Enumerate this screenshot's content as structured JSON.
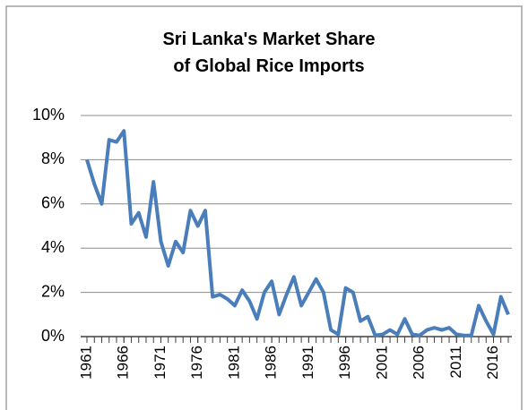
{
  "chart_data": {
    "type": "line",
    "title": [
      "Sri Lanka's Market Share",
      "of Global Rice Imports"
    ],
    "x": [
      1961,
      1962,
      1963,
      1964,
      1965,
      1966,
      1967,
      1968,
      1969,
      1970,
      1971,
      1972,
      1973,
      1974,
      1975,
      1976,
      1977,
      1978,
      1979,
      1980,
      1981,
      1982,
      1983,
      1984,
      1985,
      1986,
      1987,
      1988,
      1989,
      1990,
      1991,
      1992,
      1993,
      1994,
      1995,
      1996,
      1997,
      1998,
      1999,
      2000,
      2001,
      2002,
      2003,
      2004,
      2005,
      2006,
      2007,
      2008,
      2009,
      2010,
      2011,
      2012,
      2013,
      2014,
      2015,
      2016,
      2017,
      2018
    ],
    "series": [
      {
        "name": "Sri Lanka",
        "color": "#4a7ebb",
        "values": [
          8.0,
          6.9,
          6.0,
          8.9,
          8.8,
          9.3,
          5.1,
          5.6,
          4.5,
          7.0,
          4.3,
          3.2,
          4.3,
          3.8,
          5.7,
          5.0,
          5.7,
          1.8,
          1.9,
          1.7,
          1.4,
          2.1,
          1.6,
          0.8,
          2.0,
          2.5,
          1.0,
          1.9,
          2.7,
          1.4,
          2.0,
          2.6,
          2.0,
          0.3,
          0.1,
          2.2,
          2.0,
          0.7,
          0.9,
          0.05,
          0.1,
          0.3,
          0.1,
          0.8,
          0.1,
          0.05,
          0.3,
          0.4,
          0.3,
          0.4,
          0.1,
          0.05,
          0.05,
          1.4,
          0.7,
          0.1,
          1.8,
          1.0
        ]
      }
    ],
    "xlim": [
      1961,
      2018
    ],
    "xticks": [
      1961,
      1966,
      1971,
      1976,
      1981,
      1986,
      1991,
      1996,
      2001,
      2006,
      2011,
      2016
    ],
    "ylim": [
      0,
      10
    ],
    "yticks": [
      {
        "value": 0,
        "label": "0%"
      },
      {
        "value": 2,
        "label": "2%"
      },
      {
        "value": 4,
        "label": "4%"
      },
      {
        "value": 6,
        "label": "6%"
      },
      {
        "value": 8,
        "label": "8%"
      },
      {
        "value": 10,
        "label": "10%"
      }
    ],
    "grid": true
  }
}
